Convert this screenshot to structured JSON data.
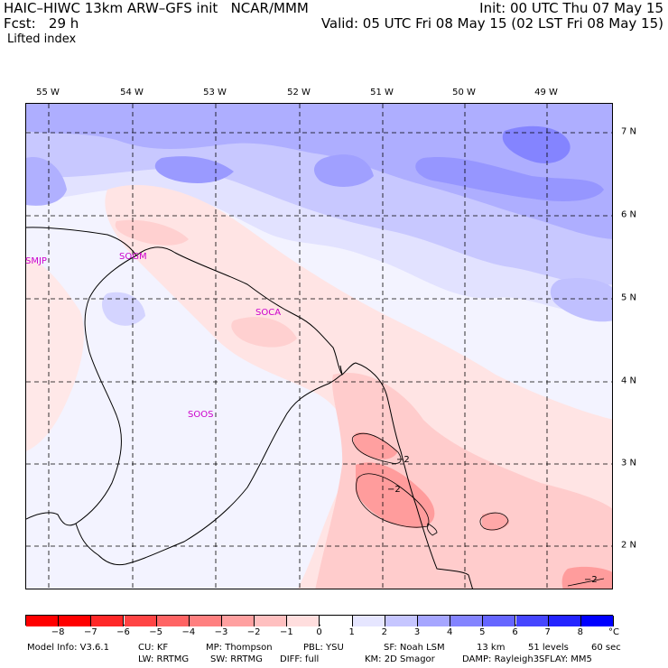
{
  "header": {
    "line1_left": "HAIC–HIWC 13km ARW–GFS init   NCAR/MMM",
    "line1_right": "Init: 00 UTC Thu 07 May 15",
    "line2_left": "Fcst:   29 h",
    "line2_right": "Valid: 05 UTC Fri 08 May 15 (02 LST Fri 08 May 15)",
    "field": "Lifted index"
  },
  "axes": {
    "lon_labels": [
      "55 W",
      "54 W",
      "53 W",
      "52 W",
      "51 W",
      "50 W",
      "49 W"
    ],
    "lat_labels": [
      "7 N",
      "6 N",
      "5 N",
      "4 N",
      "3 N",
      "2 N"
    ]
  },
  "stations": [
    "SMJP",
    "SOGM",
    "SOCA",
    "SOOS"
  ],
  "contour_labels": [
    "−2",
    "−2",
    "−2"
  ],
  "colorbar": {
    "labels": [
      "−8",
      "−7",
      "−6",
      "−5",
      "−4",
      "−3",
      "−2",
      "−1",
      "0",
      "1",
      "2",
      "3",
      "4",
      "5",
      "6",
      "7",
      "8"
    ],
    "unit": "°C",
    "colors": [
      "#ff0000",
      "#ff2828",
      "#ff4444",
      "#ff6464",
      "#ff8080",
      "#ffa0a0",
      "#ffc0c0",
      "#ffdede",
      "#ffffff",
      "#e6e6ff",
      "#c6c6ff",
      "#a6a6ff",
      "#8484ff",
      "#6666ff",
      "#4646ff",
      "#2424ff",
      "#0000ff"
    ]
  },
  "footer": {
    "line1": [
      {
        "text": "Model Info: V3.6.1"
      },
      {
        "text": "CU: KF"
      },
      {
        "text": "MP: Thompson"
      },
      {
        "text": "PBL: YSU"
      },
      {
        "text": "SF: Noah LSM"
      },
      {
        "text": "13 km"
      },
      {
        "text": "51 levels"
      },
      {
        "text": "60 sec"
      }
    ],
    "line2": [
      {
        "text": "LW: RRTMG"
      },
      {
        "text": "SW: RRTMG"
      },
      {
        "text": "DIFF: full"
      },
      {
        "text": "KM: 2D Smagor"
      },
      {
        "text": "DAMP: Rayleigh3"
      },
      {
        "text": "SFLAY: MM5"
      }
    ]
  }
}
